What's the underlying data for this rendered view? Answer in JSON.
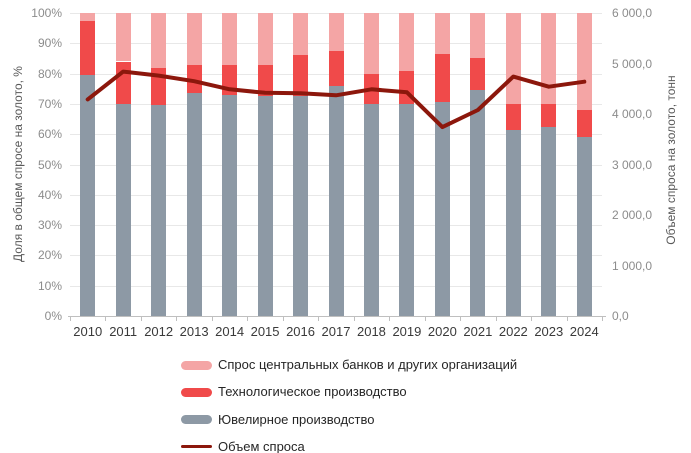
{
  "chart_data": {
    "type": "bar",
    "subtype": "stacked-100pct-bars-with-line-overlay",
    "title": "",
    "categories": [
      "2010",
      "2011",
      "2012",
      "2013",
      "2014",
      "2015",
      "2016",
      "2017",
      "2018",
      "2019",
      "2020",
      "2021",
      "2022",
      "2023",
      "2024"
    ],
    "series": [
      {
        "key": "central-banks-demand",
        "name": "Спрос центральных банков и других организаций",
        "color": "#f4a5a5",
        "unit": "%",
        "values": [
          2.5,
          16,
          18,
          17,
          17,
          17,
          14,
          12.5,
          20,
          19,
          13.5,
          15,
          30,
          30,
          32
        ]
      },
      {
        "key": "technology-production",
        "name": "Технологическое производство",
        "color": "#f04a4a",
        "unit": "%",
        "values": [
          18,
          14,
          12.5,
          9.5,
          10,
          10.5,
          13.5,
          11.5,
          10,
          11,
          16,
          10.5,
          8.5,
          7.5,
          9
        ]
      },
      {
        "key": "jewelry-production",
        "name": "Ювелирное производство",
        "color": "#8d99a5",
        "unit": "%",
        "values": [
          79.5,
          70,
          69.5,
          73.5,
          73,
          72.5,
          72.5,
          76,
          70,
          70,
          70.5,
          74.5,
          61.5,
          62.5,
          59
        ]
      }
    ],
    "line_series": {
      "key": "demand-volume",
      "name": "Объем спроса",
      "color": "#8c170c",
      "axis": "right",
      "unit": "тонн",
      "values": [
        4290,
        4840,
        4760,
        4650,
        4490,
        4420,
        4410,
        4370,
        4490,
        4430,
        3740,
        4080,
        4740,
        4540,
        4640
      ]
    },
    "left_axis": {
      "title": "Доля в общем спросе на золото, %",
      "min": 0,
      "max": 100,
      "tick_step": 10,
      "ticks": [
        "0%",
        "10%",
        "20%",
        "30%",
        "40%",
        "50%",
        "60%",
        "70%",
        "80%",
        "90%",
        "100%"
      ]
    },
    "right_axis": {
      "title": "Объем спроса на золото, тонн",
      "min": 0,
      "max": 6000,
      "tick_step": 1000,
      "ticks": [
        "0,0",
        "1 000,0",
        "2 000,0",
        "3 000,0",
        "4 000,0",
        "5 000,0",
        "6 000,0"
      ]
    },
    "grid": "horizontal",
    "legend_position": "bottom-left-column",
    "background": "#ffffff"
  }
}
